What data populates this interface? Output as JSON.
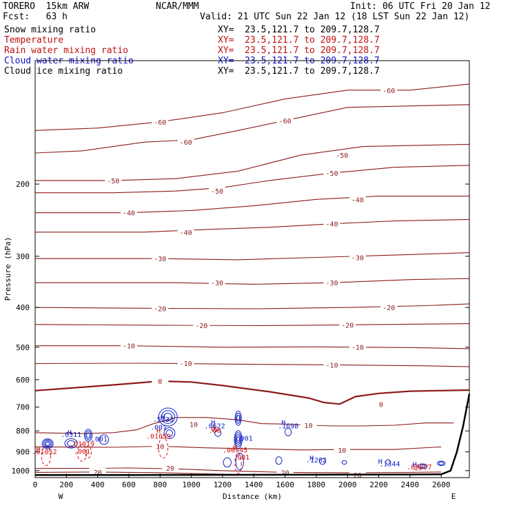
{
  "header": {
    "model": "TORERO  15km ARW",
    "source": "NCAR/MMM",
    "init": "Init: 06 UTC Fri 20 Jan 12",
    "fcst": "Fcst:   63 h",
    "valid": "Valid: 21 UTC Sun 22 Jan 12 (18 LST Sun 22 Jan 12)"
  },
  "fields": [
    {
      "name": "Snow mixing ratio",
      "xy": "XY=  23.5,121.7 to 209.7,128.7",
      "color": "#000000"
    },
    {
      "name": "Temperature",
      "xy": "XY=  23.5,121.7 to 209.7,128.7",
      "color": "#c01010"
    },
    {
      "name": "Rain water mixing ratio",
      "xy": "XY=  23.5,121.7 to 209.7,128.7",
      "color": "#c01010"
    },
    {
      "name": "Cloud water mixing ratio",
      "xy": "XY=  23.5,121.7 to 209.7,128.7",
      "color": "#1010c0"
    },
    {
      "name": "Cloud ice mixing ratio",
      "xy": "XY=  23.5,121.7 to 209.7,128.7",
      "color": "#000000"
    }
  ],
  "colors": {
    "temperature": "#8b1a1a",
    "rain": "#d01010",
    "cloud": "#1020c0",
    "terrain": "#000000"
  },
  "chart_data": {
    "type": "contour",
    "xlabel": "Distance (km)",
    "ylabel": "Pressure (hPa)",
    "xlim": [
      0,
      2780
    ],
    "ylim": [
      1040,
      100
    ],
    "y_scale": "log",
    "xticks": [
      0,
      200,
      400,
      600,
      800,
      1000,
      1200,
      1400,
      1600,
      1800,
      2000,
      2200,
      2400,
      2600
    ],
    "yticks": [
      200,
      300,
      400,
      500,
      600,
      700,
      800,
      900,
      1000
    ],
    "end_labels": {
      "left": "W",
      "right": "E"
    },
    "isotherms": [
      {
        "label": "-60",
        "points": [
          [
            0,
            148
          ],
          [
            400,
            146
          ],
          [
            800,
            141
          ],
          [
            1200,
            134
          ],
          [
            1600,
            124
          ],
          [
            2000,
            118
          ],
          [
            2400,
            118
          ],
          [
            2780,
            114
          ]
        ]
      },
      {
        "label": "-60",
        "points": [
          [
            0,
            168
          ],
          [
            300,
            166
          ],
          [
            700,
            158
          ],
          [
            1000,
            156
          ],
          [
            1300,
            148
          ],
          [
            1600,
            140
          ],
          [
            2000,
            130
          ],
          [
            2780,
            128
          ]
        ]
      },
      {
        "label": "-50",
        "points": [
          [
            0,
            196
          ],
          [
            500,
            196
          ],
          [
            900,
            194
          ],
          [
            1300,
            186
          ],
          [
            1700,
            170
          ],
          [
            2100,
            162
          ],
          [
            2780,
            160
          ]
        ]
      },
      {
        "label": "-50",
        "points": [
          [
            0,
            210
          ],
          [
            500,
            210
          ],
          [
            900,
            208
          ],
          [
            1200,
            204
          ],
          [
            1500,
            196
          ],
          [
            1900,
            188
          ],
          [
            2300,
            182
          ],
          [
            2780,
            180
          ]
        ]
      },
      {
        "label": "-40",
        "points": [
          [
            0,
            235
          ],
          [
            600,
            235
          ],
          [
            1000,
            232
          ],
          [
            1400,
            226
          ],
          [
            1800,
            218
          ],
          [
            2200,
            214
          ],
          [
            2780,
            214
          ]
        ]
      },
      {
        "label": "-40",
        "points": [
          [
            0,
            262
          ],
          [
            700,
            262
          ],
          [
            1100,
            258
          ],
          [
            1500,
            255
          ],
          [
            1900,
            250
          ],
          [
            2300,
            246
          ],
          [
            2780,
            244
          ]
        ]
      },
      {
        "label": "-30",
        "points": [
          [
            0,
            304
          ],
          [
            800,
            304
          ],
          [
            1300,
            306
          ],
          [
            1800,
            302
          ],
          [
            2300,
            298
          ],
          [
            2780,
            294
          ]
        ]
      },
      {
        "label": "-30",
        "points": [
          [
            0,
            348
          ],
          [
            900,
            348
          ],
          [
            1400,
            351
          ],
          [
            1900,
            348
          ],
          [
            2400,
            342
          ],
          [
            2780,
            340
          ]
        ]
      },
      {
        "label": "-20",
        "points": [
          [
            0,
            400
          ],
          [
            800,
            402
          ],
          [
            1400,
            403
          ],
          [
            2000,
            400
          ],
          [
            2500,
            396
          ],
          [
            2780,
            392
          ]
        ]
      },
      {
        "label": "-20",
        "points": [
          [
            0,
            440
          ],
          [
            800,
            442
          ],
          [
            1400,
            443
          ],
          [
            2000,
            441
          ],
          [
            2500,
            439
          ],
          [
            2780,
            438
          ]
        ]
      },
      {
        "label": "-10",
        "points": [
          [
            0,
            496
          ],
          [
            600,
            496
          ],
          [
            1200,
            500
          ],
          [
            1800,
            499
          ],
          [
            2400,
            501
          ],
          [
            2780,
            504
          ]
        ]
      },
      {
        "label": "-10",
        "points": [
          [
            0,
            548
          ],
          [
            700,
            547
          ],
          [
            1300,
            550
          ],
          [
            1900,
            552
          ],
          [
            2500,
            555
          ],
          [
            2780,
            558
          ]
        ]
      },
      {
        "label": "0",
        "points": [
          [
            0,
            638
          ],
          [
            200,
            630
          ],
          [
            500,
            618
          ],
          [
            800,
            605
          ],
          [
            1000,
            608
          ],
          [
            1200,
            620
          ],
          [
            1500,
            642
          ],
          [
            1750,
            665
          ],
          [
            1850,
            682
          ],
          [
            1950,
            688
          ],
          [
            2050,
            660
          ],
          [
            2200,
            648
          ],
          [
            2400,
            640
          ],
          [
            2780,
            636
          ]
        ]
      },
      {
        "label": "10",
        "points": [
          [
            0,
            808
          ],
          [
            300,
            812
          ],
          [
            500,
            808
          ],
          [
            650,
            795
          ],
          [
            750,
            770
          ],
          [
            900,
            742
          ],
          [
            1100,
            742
          ],
          [
            1300,
            752
          ],
          [
            1450,
            768
          ],
          [
            1600,
            770
          ],
          [
            1750,
            775
          ],
          [
            1900,
            778
          ],
          [
            2100,
            778
          ],
          [
            2300,
            775
          ],
          [
            2500,
            765
          ],
          [
            2680,
            765
          ]
        ]
      },
      {
        "label": "10",
        "points": [
          [
            0,
            875
          ],
          [
            500,
            877
          ],
          [
            800,
            872
          ],
          [
            1100,
            880
          ],
          [
            1400,
            885
          ],
          [
            1700,
            890
          ],
          [
            2000,
            888
          ],
          [
            2300,
            888
          ],
          [
            2600,
            875
          ]
        ]
      },
      {
        "label": "20",
        "points": [
          [
            0,
            988
          ],
          [
            300,
            988
          ],
          [
            600,
            985
          ],
          [
            900,
            990
          ],
          [
            1200,
            1000
          ],
          [
            1600,
            1010
          ],
          [
            2000,
            1012
          ],
          [
            2400,
            1010
          ],
          [
            2600,
            1008
          ]
        ]
      },
      {
        "label": "20",
        "points": [
          [
            0,
            1010
          ],
          [
            400,
            1008
          ],
          [
            800,
            1012
          ],
          [
            1300,
            1022
          ],
          [
            1800,
            1025
          ],
          [
            2300,
            1022
          ],
          [
            2600,
            1020
          ]
        ]
      }
    ],
    "terrain": [
      [
        0,
        1025
      ],
      [
        600,
        1025
      ],
      [
        1200,
        1024
      ],
      [
        1800,
        1023
      ],
      [
        2400,
        1022
      ],
      [
        2600,
        1021
      ],
      [
        2660,
        1000
      ],
      [
        2700,
        900
      ],
      [
        2740,
        780
      ],
      [
        2780,
        650
      ]
    ],
    "cloud_maxima": [
      {
        "label": ".0311",
        "x": 230,
        "p": 828
      },
      {
        "label": ".001",
        "x": 410,
        "p": 848
      },
      {
        "label": ".5133",
        "x": 820,
        "p": 760
      },
      {
        "label": ".001",
        "x": 790,
        "p": 795
      },
      {
        "label": ".0622",
        "x": 1150,
        "p": 788
      },
      {
        "label": ".001",
        "x": 1340,
        "p": 845
      },
      {
        "label": ".1698",
        "x": 1620,
        "p": 788
      },
      {
        "label": ".1262",
        "x": 1800,
        "p": 955
      },
      {
        "label": ".1344",
        "x": 2270,
        "p": 975
      }
    ],
    "rain_maxima": [
      {
        "label": ".01052",
        "x": 60,
        "p": 912
      },
      {
        "label": ".001",
        "x": 300,
        "p": 910
      },
      {
        "label": ".01019",
        "x": 300,
        "p": 872
      },
      {
        "label": ".01059",
        "x": 790,
        "p": 835
      },
      {
        "label": ".00",
        "x": 1150,
        "p": 808
      },
      {
        "label": ".00945",
        "x": 1280,
        "p": 903
      },
      {
        "label": ".001",
        "x": 1320,
        "p": 940
      },
      {
        "label": ".00027",
        "x": 2460,
        "p": 992
      }
    ],
    "h_markers": [
      {
        "label": "H",
        "x": 220,
        "p": 818,
        "field": "cloud"
      },
      {
        "label": "H",
        "x": 790,
        "p": 810,
        "field": "rain"
      },
      {
        "label": "H",
        "x": 820,
        "p": 748,
        "field": "cloud"
      },
      {
        "label": "H",
        "x": 1140,
        "p": 774,
        "field": "cloud"
      },
      {
        "label": "H",
        "x": 1140,
        "p": 796,
        "field": "rain"
      },
      {
        "label": "H",
        "x": 1280,
        "p": 891,
        "field": "rain"
      },
      {
        "label": "H",
        "x": 1590,
        "p": 774,
        "field": "cloud"
      },
      {
        "label": "H",
        "x": 1770,
        "p": 944,
        "field": "cloud"
      },
      {
        "label": "H",
        "x": 2210,
        "p": 963,
        "field": "cloud"
      },
      {
        "label": "H",
        "x": 2430,
        "p": 980,
        "field": "cloud"
      },
      {
        "label": "H",
        "x": 20,
        "p": 898,
        "field": "rain"
      }
    ],
    "cloud_contours": [
      {
        "cx": 80,
        "p": 860,
        "w": 70,
        "dp": 48,
        "rings": 4
      },
      {
        "cx": 230,
        "p": 858,
        "w": 80,
        "dp": 45,
        "rings": 2
      },
      {
        "cx": 340,
        "p": 820,
        "w": 50,
        "dp": 55,
        "rings": 3
      },
      {
        "cx": 440,
        "p": 840,
        "w": 60,
        "dp": 45,
        "rings": 1
      },
      {
        "cx": 850,
        "p": 740,
        "w": 120,
        "dp": 75,
        "rings": 3
      },
      {
        "cx": 860,
        "p": 810,
        "w": 70,
        "dp": 50,
        "rings": 2
      },
      {
        "cx": 1300,
        "p": 745,
        "w": 40,
        "dp": 60,
        "rings": 3
      },
      {
        "cx": 1300,
        "p": 840,
        "w": 50,
        "dp": 85,
        "rings": 4
      },
      {
        "cx": 1310,
        "p": 950,
        "w": 50,
        "dp": 90,
        "rings": 1
      },
      {
        "cx": 1170,
        "p": 810,
        "w": 40,
        "dp": 30,
        "rings": 1
      },
      {
        "cx": 1620,
        "p": 805,
        "w": 40,
        "dp": 35,
        "rings": 1
      },
      {
        "cx": 1230,
        "p": 955,
        "w": 50,
        "dp": 50,
        "rings": 1
      },
      {
        "cx": 1560,
        "p": 945,
        "w": 40,
        "dp": 40,
        "rings": 1
      },
      {
        "cx": 1840,
        "p": 950,
        "w": 40,
        "dp": 30,
        "rings": 1
      },
      {
        "cx": 1980,
        "p": 955,
        "w": 30,
        "dp": 20,
        "rings": 1
      },
      {
        "cx": 2260,
        "p": 953,
        "w": 30,
        "dp": 25,
        "rings": 1
      },
      {
        "cx": 2480,
        "p": 975,
        "w": 60,
        "dp": 25,
        "rings": 2
      },
      {
        "cx": 2600,
        "p": 960,
        "w": 50,
        "dp": 25,
        "rings": 2
      }
    ],
    "rain_contours": [
      {
        "cx": 70,
        "p": 920,
        "w": 60,
        "dp": 100
      },
      {
        "cx": 300,
        "p": 905,
        "w": 60,
        "dp": 85
      },
      {
        "cx": 340,
        "p": 900,
        "w": 40,
        "dp": 60
      },
      {
        "cx": 820,
        "p": 880,
        "w": 60,
        "dp": 100
      },
      {
        "cx": 1300,
        "p": 960,
        "w": 40,
        "dp": 110
      },
      {
        "cx": 1150,
        "p": 795,
        "w": 30,
        "dp": 20
      },
      {
        "cx": 2450,
        "p": 988,
        "w": 40,
        "dp": 20
      }
    ]
  }
}
